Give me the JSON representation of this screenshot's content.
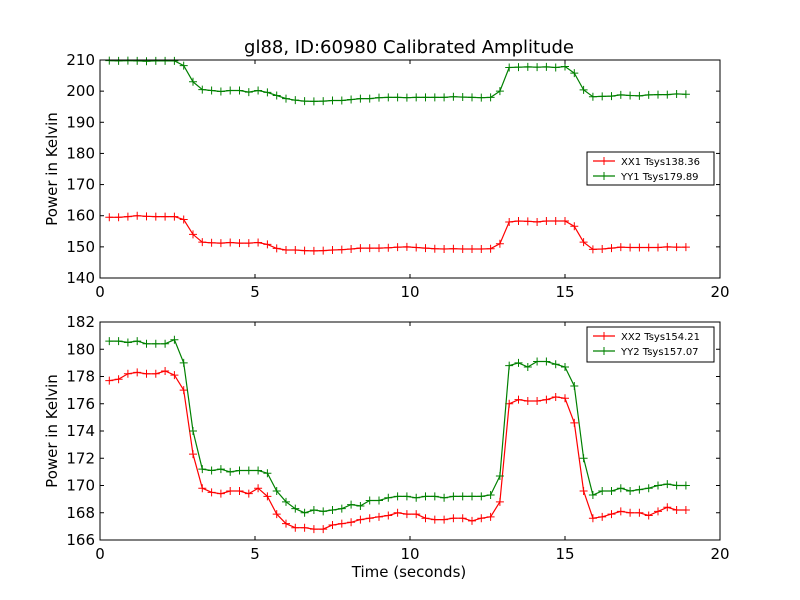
{
  "figure": {
    "title": "gl88, ID:60980 Calibrated Amplitude",
    "xlabel": "Time (seconds)"
  },
  "chart_data": [
    {
      "type": "line",
      "title": "gl88, ID:60980 Calibrated Amplitude",
      "xlabel": "",
      "ylabel": "Power in Kelvin",
      "xlim": [
        0,
        20
      ],
      "ylim": [
        140,
        210
      ],
      "xticks": [
        0,
        5,
        10,
        15,
        20
      ],
      "yticks": [
        140,
        150,
        160,
        170,
        180,
        190,
        200,
        210
      ],
      "grid": false,
      "legend_position": "right",
      "marker": "+",
      "x": [
        0.3,
        0.6,
        0.9,
        1.2,
        1.5,
        1.8,
        2.1,
        2.4,
        2.7,
        3.0,
        3.3,
        3.6,
        3.9,
        4.2,
        4.5,
        4.8,
        5.1,
        5.4,
        5.7,
        6.0,
        6.3,
        6.6,
        6.9,
        7.2,
        7.5,
        7.8,
        8.1,
        8.4,
        8.7,
        9.0,
        9.3,
        9.6,
        9.9,
        10.2,
        10.5,
        10.8,
        11.1,
        11.4,
        11.7,
        12.0,
        12.3,
        12.6,
        12.9,
        13.2,
        13.5,
        13.8,
        14.1,
        14.4,
        14.7,
        15.0,
        15.3,
        15.6,
        15.9,
        16.2,
        16.5,
        16.8,
        17.1,
        17.4,
        17.7,
        18.0,
        18.3,
        18.6,
        18.9
      ],
      "series": [
        {
          "name": "XX1 Tsys138.36",
          "color": "#ff0000",
          "values": [
            159.5,
            159.5,
            159.7,
            160.0,
            159.8,
            159.7,
            159.7,
            159.7,
            158.8,
            154.0,
            151.5,
            151.3,
            151.2,
            151.4,
            151.2,
            151.2,
            151.4,
            150.8,
            149.5,
            149.0,
            149.0,
            148.8,
            148.7,
            148.8,
            149.0,
            149.1,
            149.3,
            149.6,
            149.6,
            149.6,
            149.7,
            149.9,
            150.0,
            149.8,
            149.6,
            149.4,
            149.3,
            149.4,
            149.3,
            149.3,
            149.3,
            149.4,
            151.0,
            158.0,
            158.3,
            158.2,
            158.0,
            158.3,
            158.3,
            158.3,
            156.6,
            151.5,
            149.2,
            149.3,
            149.6,
            149.9,
            149.8,
            149.8,
            149.8,
            149.8,
            150.0,
            149.9,
            149.9
          ]
        },
        {
          "name": "YY1 Tsys179.89",
          "color": "#008000",
          "values": [
            209.8,
            209.7,
            209.8,
            209.7,
            209.6,
            209.7,
            209.7,
            209.7,
            208.2,
            203.0,
            200.5,
            200.2,
            199.9,
            200.2,
            200.2,
            199.7,
            200.2,
            199.6,
            198.6,
            197.6,
            197.1,
            196.8,
            196.7,
            196.8,
            197.0,
            197.0,
            197.3,
            197.6,
            197.6,
            197.9,
            198.0,
            198.0,
            197.9,
            198.0,
            198.0,
            198.0,
            198.0,
            198.2,
            198.1,
            198.0,
            197.9,
            198.0,
            200.0,
            207.6,
            207.7,
            207.8,
            207.7,
            207.8,
            207.6,
            207.9,
            205.8,
            200.4,
            198.2,
            198.3,
            198.4,
            198.8,
            198.6,
            198.5,
            198.8,
            198.9,
            198.9,
            199.1,
            199.0
          ]
        }
      ]
    },
    {
      "type": "line",
      "title": "",
      "xlabel": "Time (seconds)",
      "ylabel": "Power in Kelvin",
      "xlim": [
        0,
        20
      ],
      "ylim": [
        166,
        182
      ],
      "xticks": [
        0,
        5,
        10,
        15,
        20
      ],
      "yticks": [
        166,
        168,
        170,
        172,
        174,
        176,
        178,
        180,
        182
      ],
      "grid": false,
      "legend_position": "top-right",
      "marker": "+",
      "x": [
        0.3,
        0.6,
        0.9,
        1.2,
        1.5,
        1.8,
        2.1,
        2.4,
        2.7,
        3.0,
        3.3,
        3.6,
        3.9,
        4.2,
        4.5,
        4.8,
        5.1,
        5.4,
        5.7,
        6.0,
        6.3,
        6.6,
        6.9,
        7.2,
        7.5,
        7.8,
        8.1,
        8.4,
        8.7,
        9.0,
        9.3,
        9.6,
        9.9,
        10.2,
        10.5,
        10.8,
        11.1,
        11.4,
        11.7,
        12.0,
        12.3,
        12.6,
        12.9,
        13.2,
        13.5,
        13.8,
        14.1,
        14.4,
        14.7,
        15.0,
        15.3,
        15.6,
        15.9,
        16.2,
        16.5,
        16.8,
        17.1,
        17.4,
        17.7,
        18.0,
        18.3,
        18.6,
        18.9
      ],
      "series": [
        {
          "name": "XX2 Tsys154.21",
          "color": "#ff0000",
          "values": [
            177.7,
            177.8,
            178.2,
            178.3,
            178.2,
            178.2,
            178.4,
            178.1,
            177.0,
            172.3,
            169.8,
            169.5,
            169.4,
            169.6,
            169.6,
            169.4,
            169.8,
            169.2,
            167.9,
            167.2,
            166.9,
            166.9,
            166.8,
            166.8,
            167.1,
            167.2,
            167.3,
            167.5,
            167.6,
            167.7,
            167.8,
            168.0,
            167.9,
            167.9,
            167.6,
            167.5,
            167.5,
            167.6,
            167.6,
            167.4,
            167.6,
            167.7,
            168.8,
            176.0,
            176.3,
            176.2,
            176.2,
            176.3,
            176.5,
            176.4,
            174.6,
            169.6,
            167.6,
            167.7,
            167.9,
            168.1,
            168.0,
            168.0,
            167.8,
            168.1,
            168.4,
            168.2,
            168.2
          ]
        },
        {
          "name": "YY2 Tsys157.07",
          "color": "#008000",
          "values": [
            180.6,
            180.6,
            180.5,
            180.6,
            180.4,
            180.4,
            180.4,
            180.7,
            179.0,
            174.0,
            171.2,
            171.1,
            171.2,
            171.0,
            171.1,
            171.1,
            171.1,
            170.9,
            169.6,
            168.8,
            168.3,
            168.0,
            168.2,
            168.1,
            168.2,
            168.3,
            168.6,
            168.5,
            168.9,
            168.9,
            169.1,
            169.2,
            169.2,
            169.1,
            169.2,
            169.2,
            169.1,
            169.2,
            169.2,
            169.2,
            169.2,
            169.3,
            170.7,
            178.8,
            179.0,
            178.7,
            179.1,
            179.1,
            178.9,
            178.7,
            177.3,
            172.0,
            169.3,
            169.6,
            169.6,
            169.8,
            169.6,
            169.7,
            169.8,
            170.0,
            170.1,
            170.0,
            170.0
          ]
        }
      ]
    }
  ]
}
